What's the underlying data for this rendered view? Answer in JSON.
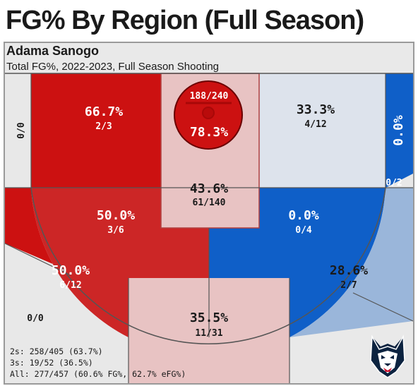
{
  "page": {
    "title": "FG% By Region (Full Season)",
    "player": "Adama Sanogo",
    "subtitle": "Total FG%, 2022-2023, Full Season Shooting"
  },
  "chart_data": {
    "type": "heatmap",
    "title": "FG% By Region (Full Season)",
    "subtitle": "Total FG%, 2022-2023, Full Season Shooting",
    "zones": [
      {
        "region": "left corner 3",
        "pct": "",
        "made_att": "0/0",
        "color": "#e8e8e8"
      },
      {
        "region": "left baseline 2",
        "pct": "66.7%",
        "made_att": "2/3",
        "color": "#cc1111"
      },
      {
        "region": "restricted area",
        "pct": "78.3%",
        "made_att": "188/240",
        "color": "#cc1111"
      },
      {
        "region": "paint",
        "pct": "43.6%",
        "made_att": "61/140",
        "color": "#e8c3c3"
      },
      {
        "region": "right baseline 2",
        "pct": "33.3%",
        "made_att": "4/12",
        "color": "#dde3ec"
      },
      {
        "region": "right corner 3",
        "pct": "0.0%",
        "made_att": "0/2",
        "color": "#0f5fc8"
      },
      {
        "region": "left elbow 2",
        "pct": "50.0%",
        "made_att": "3/6",
        "color": "#cc2626"
      },
      {
        "region": "right elbow 2",
        "pct": "0.0%",
        "made_att": "0/4",
        "color": "#0f5fc8"
      },
      {
        "region": "left wing 3",
        "pct": "50.0%",
        "made_att": "6/12",
        "color": "#cc1111"
      },
      {
        "region": "top of key 3",
        "pct": "35.5%",
        "made_att": "11/31",
        "color": "#e8c3c3"
      },
      {
        "region": "right wing 3",
        "pct": "28.6%",
        "made_att": "2/7",
        "color": "#9ab6da"
      },
      {
        "region": "left deep 3",
        "pct": "",
        "made_att": "0/0",
        "color": "#e8e8e8"
      }
    ],
    "summary": {
      "twos": "2s: 258/405 (63.7%)",
      "threes": "3s: 19/52 (36.5%)",
      "all": "All: 277/457 (60.6% FG%, 62.7% eFG%)"
    }
  },
  "colors": {
    "hot": "#cc1111",
    "warm": "#e8c3c3",
    "neutral": "#dde3ec",
    "cool": "#9ab6da",
    "cold": "#0f5fc8",
    "empty": "#e8e8e8"
  },
  "logo": {
    "icon": "husky-head-icon"
  }
}
